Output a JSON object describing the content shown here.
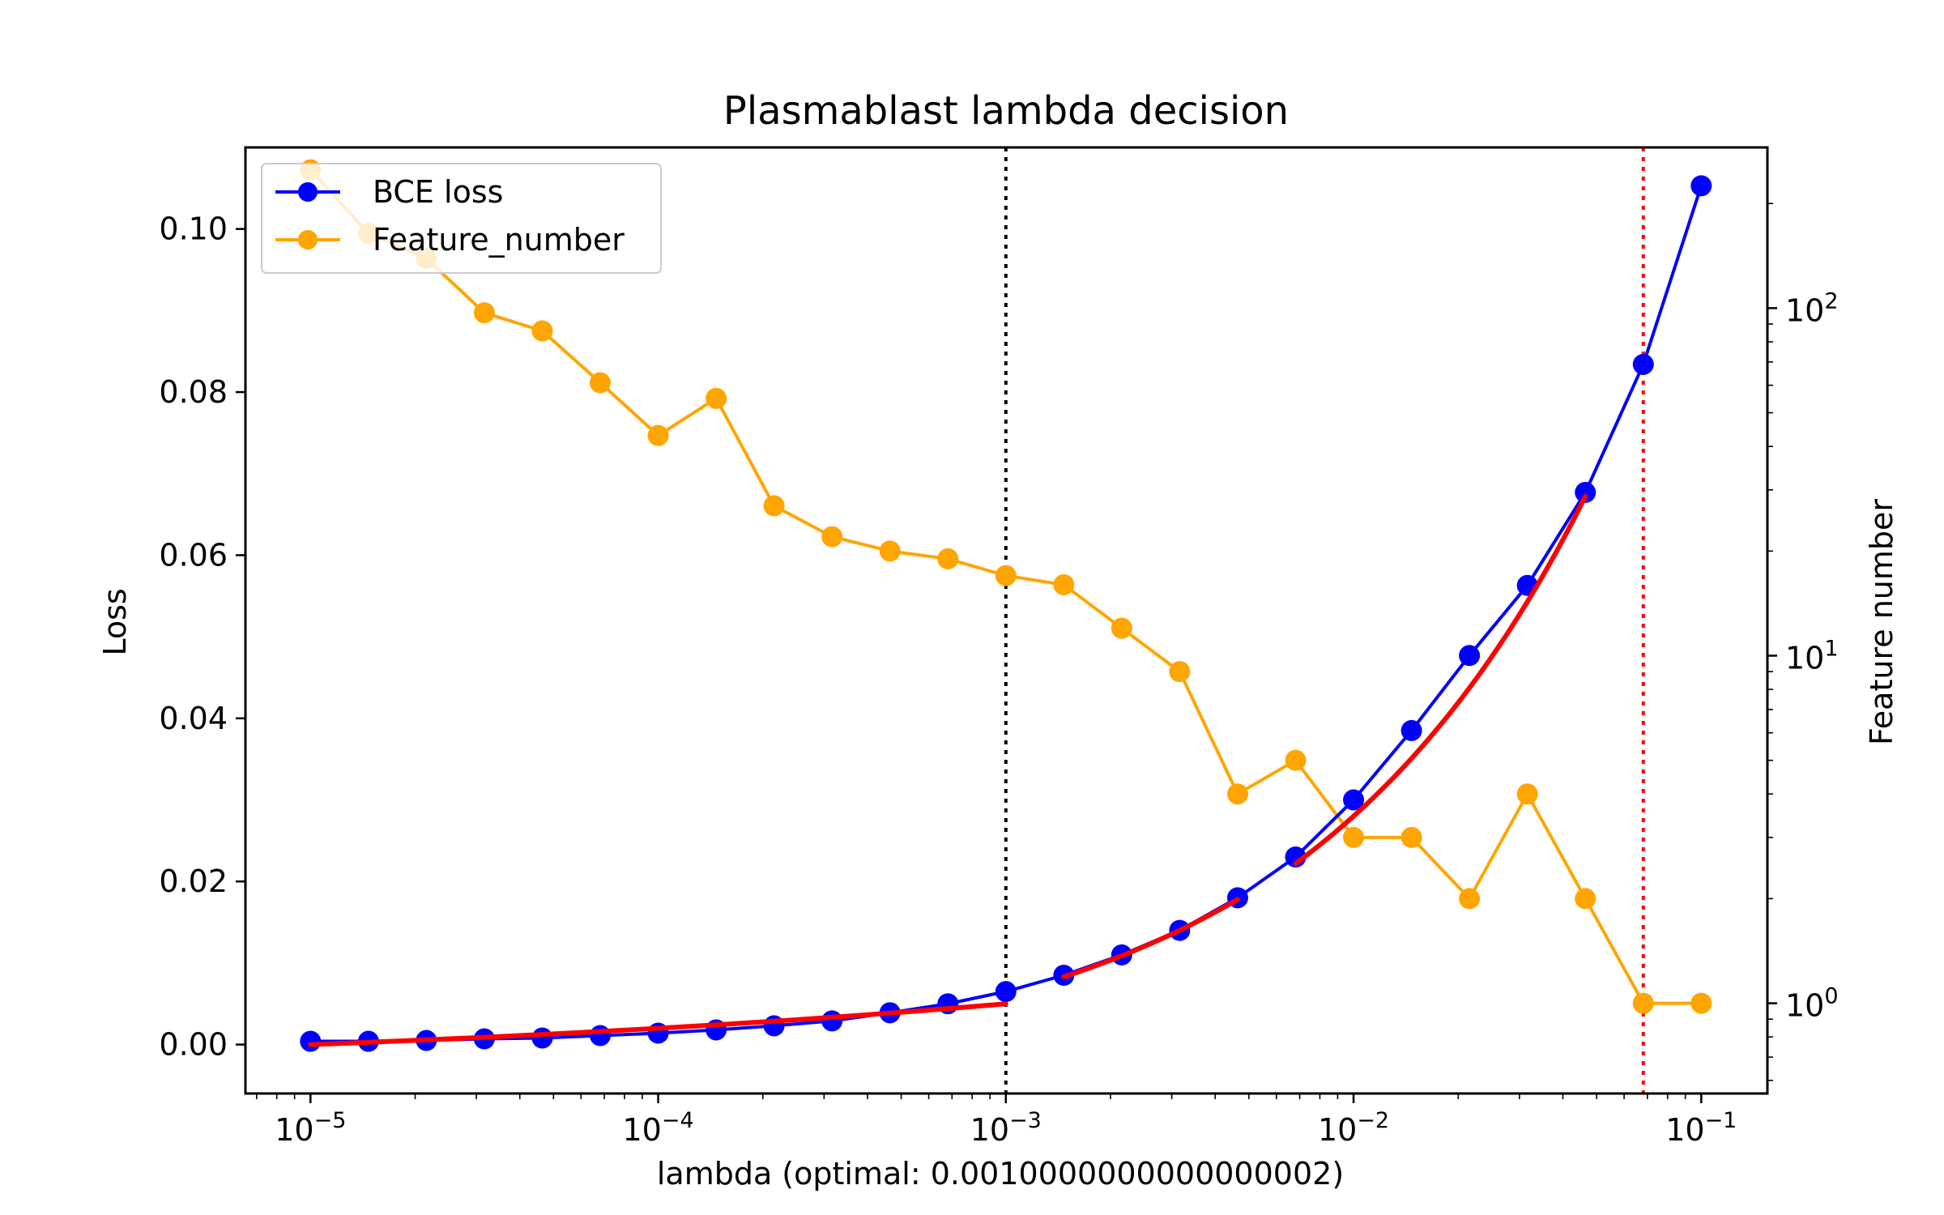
{
  "chart_data": {
    "type": "line",
    "title": "Plasmablast lambda decision",
    "xlabel": "lambda (optimal: 0.0010000000000000002)",
    "ylabel": "Loss",
    "ylabel_right": "Feature number",
    "xscale": "log",
    "xlim": [
      6.5e-06,
      0.155
    ],
    "ylim": [
      -0.006,
      0.11
    ],
    "y2scale": "log",
    "y2lim": [
      0.55,
      290
    ],
    "xticks": [
      {
        "value": 1e-05,
        "base": "10",
        "exp": "−5"
      },
      {
        "value": 0.0001,
        "base": "10",
        "exp": "−4"
      },
      {
        "value": 0.001,
        "base": "10",
        "exp": "−3"
      },
      {
        "value": 0.01,
        "base": "10",
        "exp": "−2"
      },
      {
        "value": 0.1,
        "base": "10",
        "exp": "−1"
      }
    ],
    "yticks": [
      "0.00",
      "0.02",
      "0.04",
      "0.06",
      "0.08",
      "0.10"
    ],
    "y2ticks": [
      {
        "value": 1,
        "base": "10",
        "exp": "0"
      },
      {
        "value": 10,
        "base": "10",
        "exp": "1"
      },
      {
        "value": 100,
        "base": "10",
        "exp": "2"
      }
    ],
    "x": [
      1e-05,
      1.468e-05,
      2.154e-05,
      3.162e-05,
      4.642e-05,
      6.813e-05,
      0.0001,
      0.0001468,
      0.0002154,
      0.0003162,
      0.0004642,
      0.0006813,
      0.001,
      0.001468,
      0.002154,
      0.003162,
      0.004642,
      0.006813,
      0.01,
      0.01468,
      0.02154,
      0.03162,
      0.04642,
      0.06813,
      0.1
    ],
    "series": [
      {
        "name": "BCE loss",
        "axis": "left",
        "color": "#0000ff",
        "values": [
          0.0004,
          0.0004,
          0.0005,
          0.0007,
          0.0008,
          0.0011,
          0.0014,
          0.0018,
          0.0023,
          0.0029,
          0.0039,
          0.005,
          0.0065,
          0.0085,
          0.011,
          0.014,
          0.018,
          0.023,
          0.03,
          0.0385,
          0.0477,
          0.0563,
          0.0677,
          0.0834,
          0.1053
        ]
      },
      {
        "name": "Feature_number",
        "axis": "right",
        "color": "#ffa500",
        "values": [
          250,
          164,
          139,
          97,
          86,
          61,
          43,
          55,
          27,
          22,
          20,
          19,
          17,
          16,
          12,
          9,
          4,
          5,
          3,
          3,
          2,
          4,
          2,
          1,
          1
        ]
      }
    ],
    "fit_segments": [
      {
        "color": "#ff0000",
        "x": [
          1e-05,
          0.001
        ],
        "y": [
          -0.0005,
          0.005
        ]
      },
      {
        "color": "#ff0000",
        "x": [
          0.001468,
          0.004642
        ],
        "y": [
          0.0083,
          0.0178
        ]
      },
      {
        "color": "#ff0000",
        "x": [
          0.006813,
          0.04642
        ],
        "y": [
          0.0222,
          0.0672
        ]
      }
    ],
    "vlines": [
      {
        "x": 0.001,
        "color": "#000000",
        "style": "dotted"
      },
      {
        "x": 0.06813,
        "color": "#ff0000",
        "style": "dotted"
      }
    ],
    "legend": {
      "placement": "upper-left",
      "entries": [
        "BCE loss",
        "Feature_number"
      ]
    },
    "grid": false
  }
}
